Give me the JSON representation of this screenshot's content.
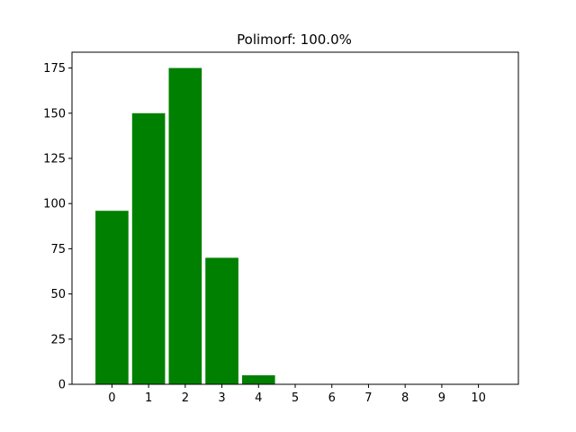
{
  "chart_data": {
    "type": "bar",
    "title": "Polimorf: 100.0%",
    "xlabel": "",
    "ylabel": "",
    "categories": [
      "0",
      "1",
      "2",
      "3",
      "4",
      "5",
      "6",
      "7",
      "8",
      "9",
      "10"
    ],
    "values": [
      96,
      150,
      175,
      70,
      5,
      0,
      0,
      0,
      0,
      0,
      0
    ],
    "xlim": [
      -1.09,
      11.09
    ],
    "ylim": [
      0,
      183.75
    ],
    "yticks": [
      0,
      25,
      50,
      75,
      100,
      125,
      150,
      175
    ],
    "bar_color": "#008000",
    "grid": false,
    "legend": "none"
  }
}
